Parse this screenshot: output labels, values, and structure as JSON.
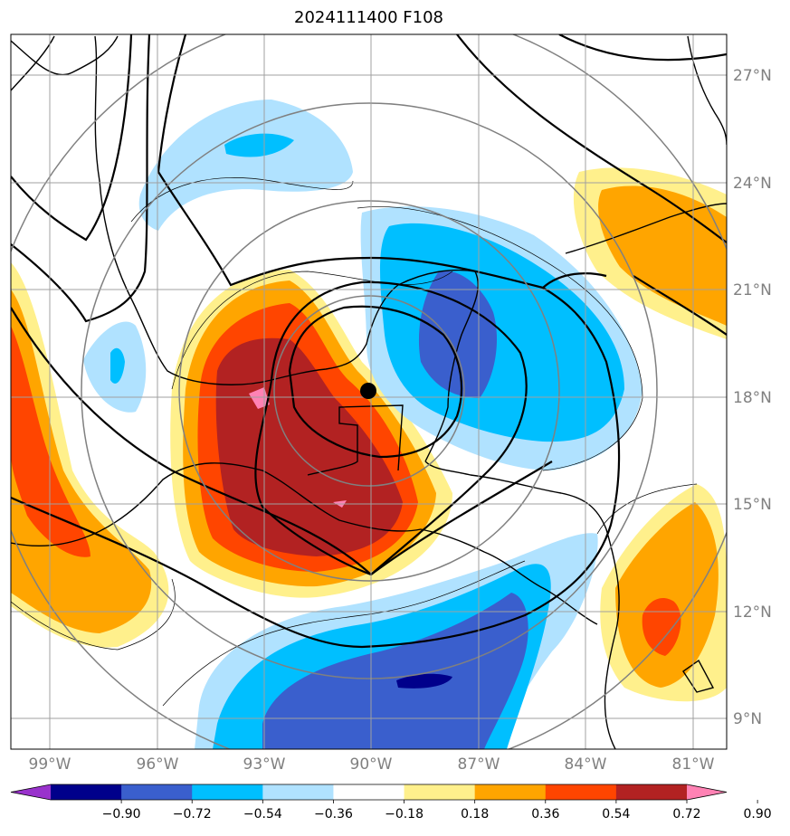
{
  "title": "2024111400 F108",
  "map": {
    "lat_ticks": [
      "27°N",
      "24°N",
      "21°N",
      "18°N",
      "15°N",
      "12°N",
      "9°N"
    ],
    "lon_ticks": [
      "99°W",
      "96°W",
      "93°W",
      "90°W",
      "87°W",
      "84°W",
      "81°W"
    ],
    "center_marker": {
      "lon": -90.0,
      "lat": 18.2
    },
    "extent": {
      "lon": [
        -100,
        -80
      ],
      "lat": [
        8.2,
        28.2
      ]
    }
  },
  "colorbar": {
    "colors": [
      "#9932cc",
      "#00008b",
      "#3a5fcd",
      "#00bfff",
      "#b0e2ff",
      "#ffffff",
      "#fff08c",
      "#ffa500",
      "#ff4500",
      "#b22222",
      "#ff82b4"
    ],
    "labels": [
      "−0.90",
      "−0.72",
      "−0.54",
      "−0.36",
      "−0.18",
      "0.18",
      "0.36",
      "0.54",
      "0.72",
      "0.90"
    ]
  }
}
